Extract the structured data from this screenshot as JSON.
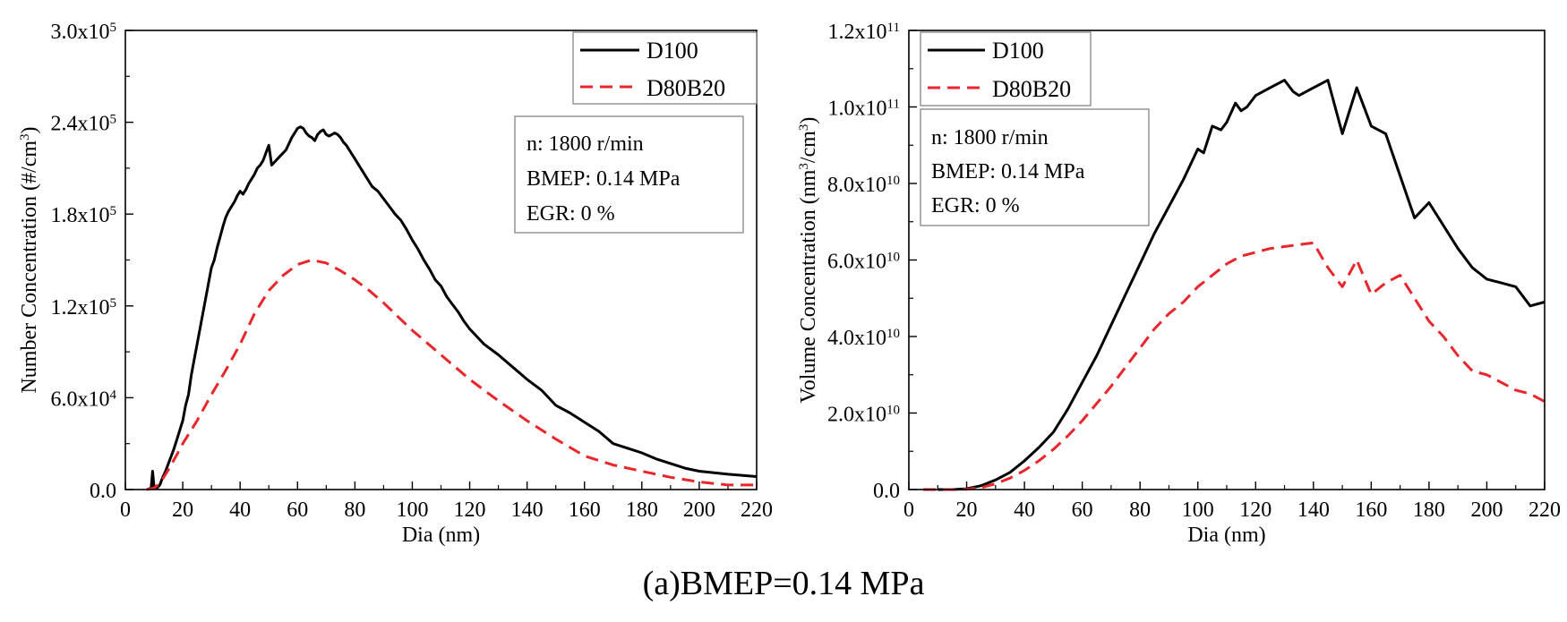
{
  "caption": "(a)BMEP=0.14 MPa",
  "colors": {
    "D100": "#000000",
    "D80B20": "#e8262b",
    "axis": "#000000"
  },
  "chart_data": [
    {
      "type": "line",
      "xlabel": "Dia (nm)",
      "ylabel": "Number Concentration (#/cm3)",
      "ylabel_unit_sup": "3",
      "xlim": [
        0,
        220
      ],
      "ylim": [
        0,
        300000
      ],
      "x_ticks": [
        0,
        20,
        40,
        60,
        80,
        100,
        120,
        140,
        160,
        180,
        200,
        220
      ],
      "y_ticks": [
        {
          "value": 0,
          "mant": "0.0",
          "exp": ""
        },
        {
          "value": 60000,
          "mant": "6.0x10",
          "exp": "4"
        },
        {
          "value": 120000,
          "mant": "1.2x10",
          "exp": "5"
        },
        {
          "value": 180000,
          "mant": "1.8x10",
          "exp": "5"
        },
        {
          "value": 240000,
          "mant": "2.4x10",
          "exp": "5"
        },
        {
          "value": 300000,
          "mant": "3.0x10",
          "exp": "5"
        }
      ],
      "legend": [
        "D100",
        "D80B20"
      ],
      "annotation": [
        "n: 1800 r/min",
        "BMEP: 0.14 MPa",
        "EGR: 0 %"
      ],
      "series": [
        {
          "name": "D100",
          "style": "solid",
          "x": [
            7.5,
            9,
            9.5,
            10,
            11,
            12,
            13,
            14,
            15,
            16,
            17,
            18,
            19,
            20,
            21,
            22,
            23,
            24,
            25,
            26,
            27,
            28,
            29,
            30,
            31,
            32,
            33,
            34,
            35,
            36,
            37,
            38,
            39,
            40,
            41,
            42,
            43,
            44,
            45,
            46,
            47,
            48,
            49,
            50,
            51,
            52,
            53,
            54,
            55,
            56,
            57,
            58,
            59,
            60,
            61,
            62,
            63,
            64,
            65,
            66,
            67,
            68,
            69,
            70,
            71,
            72,
            73,
            74,
            75,
            76,
            77,
            78,
            79,
            80,
            82,
            84,
            86,
            88,
            90,
            92,
            94,
            96,
            98,
            100,
            102,
            104,
            106,
            108,
            110,
            112,
            114,
            116,
            118,
            120,
            125,
            130,
            135,
            140,
            145,
            150,
            155,
            160,
            165,
            170,
            175,
            180,
            185,
            190,
            195,
            200,
            210,
            220
          ],
          "y": [
            0,
            1000,
            12000,
            2000,
            1000,
            3000,
            8000,
            12000,
            17000,
            22000,
            27000,
            33000,
            39000,
            45000,
            55000,
            62000,
            75000,
            85000,
            95000,
            105000,
            115000,
            125000,
            135000,
            145000,
            150000,
            158000,
            165000,
            172000,
            178000,
            182000,
            185000,
            188000,
            192000,
            195000,
            193000,
            196000,
            200000,
            203000,
            206000,
            210000,
            212000,
            215000,
            220000,
            225000,
            212000,
            214000,
            216000,
            218000,
            220000,
            222000,
            226000,
            230000,
            233000,
            236000,
            237000,
            236000,
            233000,
            231000,
            230000,
            228000,
            232000,
            234000,
            235000,
            232000,
            231000,
            232000,
            233000,
            232000,
            230000,
            227000,
            225000,
            222000,
            219000,
            216000,
            210000,
            204000,
            198000,
            195000,
            190000,
            185000,
            180000,
            176000,
            170000,
            163000,
            157000,
            150000,
            144000,
            137000,
            133000,
            126000,
            121000,
            116000,
            110000,
            105000,
            95000,
            88000,
            80000,
            72000,
            65000,
            55000,
            50000,
            44000,
            38000,
            30000,
            27000,
            24000,
            20000,
            17000,
            14000,
            12000,
            10000,
            8500
          ]
        },
        {
          "name": "D80B20",
          "style": "dashed",
          "x": [
            7.5,
            10,
            12,
            15,
            18,
            20,
            25,
            30,
            35,
            40,
            45,
            50,
            55,
            60,
            65,
            70,
            75,
            80,
            85,
            90,
            95,
            100,
            105,
            110,
            115,
            120,
            130,
            140,
            150,
            160,
            170,
            180,
            190,
            200,
            210,
            220
          ],
          "y": [
            0,
            1000,
            4000,
            13000,
            23000,
            30000,
            45000,
            62000,
            78000,
            95000,
            115000,
            130000,
            140000,
            147000,
            150000,
            148000,
            143000,
            137000,
            130000,
            122000,
            113000,
            104000,
            96000,
            88000,
            80000,
            72000,
            58000,
            45000,
            33000,
            22000,
            16000,
            12000,
            8000,
            5000,
            3000,
            3000
          ]
        }
      ]
    },
    {
      "type": "line",
      "xlabel": "Dia (nm)",
      "ylabel": "Volume Concentration (nm3/cm3)",
      "ylabel_unit_sup": "3",
      "xlim": [
        0,
        220
      ],
      "ylim": [
        0,
        120000000000
      ],
      "x_ticks": [
        0,
        20,
        40,
        60,
        80,
        100,
        120,
        140,
        160,
        180,
        200,
        220
      ],
      "y_ticks": [
        {
          "value": 0,
          "mant": "0.0",
          "exp": ""
        },
        {
          "value": 20000000000,
          "mant": "2.0x10",
          "exp": "10"
        },
        {
          "value": 40000000000,
          "mant": "4.0x10",
          "exp": "10"
        },
        {
          "value": 60000000000,
          "mant": "6.0x10",
          "exp": "10"
        },
        {
          "value": 80000000000,
          "mant": "8.0x10",
          "exp": "10"
        },
        {
          "value": 100000000000,
          "mant": "1.0x10",
          "exp": "11"
        },
        {
          "value": 120000000000,
          "mant": "1.2x10",
          "exp": "11"
        }
      ],
      "legend": [
        "D100",
        "D80B20"
      ],
      "annotation": [
        "n: 1800 r/min",
        "BMEP: 0.14 MPa",
        "EGR: 0 %"
      ],
      "series": [
        {
          "name": "D100",
          "style": "solid",
          "x": [
            10,
            15,
            20,
            25,
            30,
            35,
            40,
            45,
            50,
            55,
            60,
            65,
            70,
            75,
            80,
            85,
            90,
            95,
            100,
            102,
            105,
            108,
            110,
            113,
            115,
            117,
            120,
            125,
            130,
            133,
            135,
            140,
            145,
            150,
            155,
            160,
            165,
            170,
            175,
            180,
            185,
            190,
            195,
            200,
            205,
            210,
            215,
            220
          ],
          "y": [
            0,
            0,
            200000000,
            1000000000,
            2500000000,
            4500000000,
            7500000000,
            11000000000,
            15000000000,
            21000000000,
            28000000000,
            35000000000,
            43000000000,
            51000000000,
            59000000000,
            67000000000,
            74000000000,
            81000000000,
            89000000000,
            88000000000,
            95000000000,
            94000000000,
            96000000000,
            101000000000,
            99000000000,
            100000000000,
            103000000000,
            105000000000,
            107000000000,
            104000000000,
            103000000000,
            105000000000,
            107000000000,
            93000000000,
            105000000000,
            95000000000,
            93000000000,
            82000000000,
            71000000000,
            75000000000,
            69000000000,
            63000000000,
            58000000000,
            55000000000,
            54000000000,
            53000000000,
            48000000000,
            49000000000
          ]
        },
        {
          "name": "D80B20",
          "style": "dashed",
          "x": [
            5,
            10,
            15,
            20,
            25,
            30,
            35,
            40,
            45,
            50,
            55,
            60,
            65,
            70,
            75,
            80,
            85,
            90,
            95,
            100,
            105,
            110,
            115,
            120,
            125,
            130,
            135,
            140,
            145,
            150,
            155,
            160,
            165,
            170,
            175,
            180,
            185,
            190,
            195,
            200,
            205,
            210,
            215,
            220
          ],
          "y": [
            0,
            0,
            0,
            100000000,
            500000000,
            1500000000,
            3000000000,
            5000000000,
            7500000000,
            10500000000,
            14000000000,
            18000000000,
            22500000000,
            27000000000,
            32000000000,
            37000000000,
            42000000000,
            46000000000,
            49000000000,
            53000000000,
            56000000000,
            59000000000,
            61000000000,
            62000000000,
            63000000000,
            63500000000,
            64000000000,
            64500000000,
            58000000000,
            53000000000,
            60000000000,
            51000000000,
            54000000000,
            56000000000,
            50000000000,
            44000000000,
            40000000000,
            35000000000,
            31000000000,
            30000000000,
            28000000000,
            26000000000,
            25000000000,
            23000000000
          ]
        }
      ]
    }
  ]
}
